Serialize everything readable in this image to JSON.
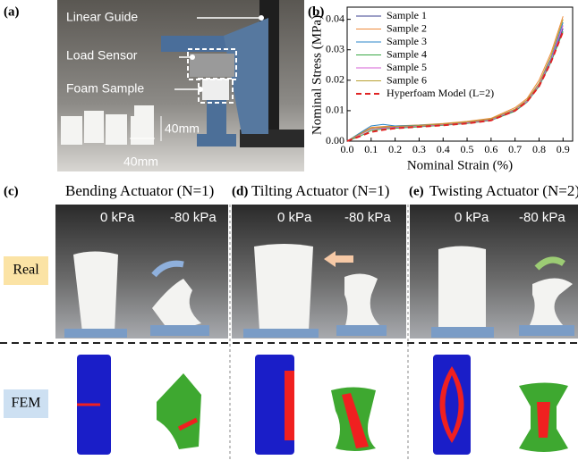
{
  "panel_a": {
    "label": "(a)",
    "annotations": [
      "Linear Guide",
      "Load Sensor",
      "Foam Sample",
      "40mm",
      "40mm"
    ]
  },
  "panel_b": {
    "label": "(b)"
  },
  "chart_data": {
    "type": "line",
    "x_label": "Nominal Strain (%)",
    "y_label": "Nominal Stress (MPa)",
    "x": [
      0,
      0.05,
      0.1,
      0.15,
      0.2,
      0.3,
      0.4,
      0.5,
      0.6,
      0.7,
      0.75,
      0.8,
      0.85,
      0.9
    ],
    "series": [
      {
        "name": "Sample 1",
        "color": "#3b3f8f",
        "values": [
          0,
          0.002,
          0.004,
          0.0045,
          0.0047,
          0.005,
          0.0055,
          0.006,
          0.007,
          0.01,
          0.013,
          0.018,
          0.026,
          0.037
        ]
      },
      {
        "name": "Sample 2",
        "color": "#ee8a3a",
        "values": [
          0,
          0.0025,
          0.0045,
          0.0048,
          0.005,
          0.0053,
          0.0058,
          0.0065,
          0.0075,
          0.011,
          0.014,
          0.02,
          0.029,
          0.041
        ]
      },
      {
        "name": "Sample 3",
        "color": "#2a86c8",
        "values": [
          0,
          0.0025,
          0.005,
          0.0055,
          0.005,
          0.0052,
          0.0056,
          0.0062,
          0.0072,
          0.0105,
          0.0135,
          0.019,
          0.027,
          0.039
        ]
      },
      {
        "name": "Sample 4",
        "color": "#3aa845",
        "values": [
          0,
          0.0015,
          0.0035,
          0.004,
          0.0042,
          0.0047,
          0.0052,
          0.0058,
          0.0068,
          0.0098,
          0.0128,
          0.018,
          0.026,
          0.036
        ]
      },
      {
        "name": "Sample 5",
        "color": "#d45fd4",
        "values": [
          0,
          0.002,
          0.004,
          0.0043,
          0.0045,
          0.0049,
          0.0054,
          0.006,
          0.007,
          0.0102,
          0.013,
          0.0185,
          0.0265,
          0.038
        ]
      },
      {
        "name": "Sample 6",
        "color": "#b8a032",
        "values": [
          0,
          0.0022,
          0.0042,
          0.0046,
          0.0048,
          0.0051,
          0.0056,
          0.0063,
          0.0073,
          0.0105,
          0.0135,
          0.019,
          0.028,
          0.04
        ]
      },
      {
        "name": "Hyperfoam Model (L=2)",
        "color": "#e02424",
        "dashed": true,
        "values": [
          0,
          0.0015,
          0.003,
          0.0037,
          0.0042,
          0.0047,
          0.0052,
          0.0058,
          0.0068,
          0.01,
          0.013,
          0.018,
          0.026,
          0.036
        ]
      }
    ],
    "xlim": [
      0,
      0.94
    ],
    "ylim": [
      0,
      0.044
    ],
    "xticks": [
      {
        "value": 0,
        "label": "0.0"
      },
      0.1,
      0.2,
      0.3,
      0.4,
      0.5,
      0.6,
      0.7,
      0.8,
      0.9
    ],
    "yticks": [
      {
        "value": 0,
        "label": "0.00"
      },
      0.01,
      0.02,
      0.03,
      0.04
    ],
    "legend": "upper left"
  },
  "panel_c": {
    "label": "(c)",
    "title": "Bending Actuator (N=1)",
    "before": "0 kPa",
    "after": "-80 kPa"
  },
  "panel_d": {
    "label": "(d)",
    "title": "Tilting Actuator (N=1)",
    "before": "0 kPa",
    "after": "-80 kPa"
  },
  "panel_e": {
    "label": "(e)",
    "title": "Twisting Actuator (N=2)",
    "before": "0 kPa",
    "after": "-80 kPa"
  },
  "rows": {
    "real": "Real",
    "fem": "FEM"
  }
}
